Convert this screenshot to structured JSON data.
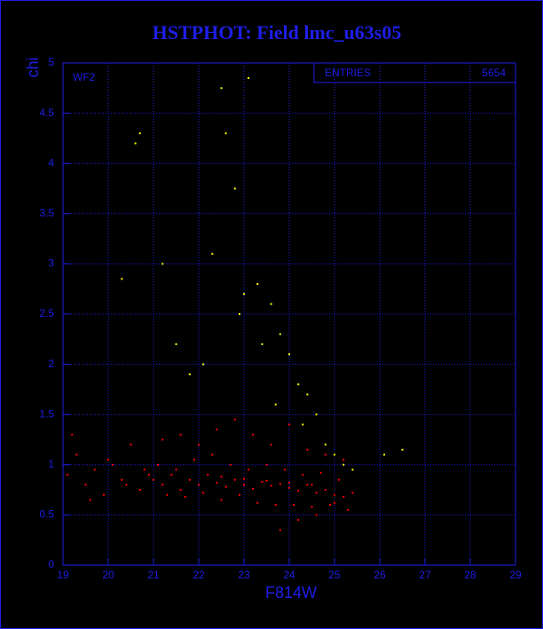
{
  "chart_data": {
    "type": "scatter",
    "title": "HSTPHOT: Field lmc_u63s05",
    "x_label": "F814W",
    "y_label": "chi",
    "panel_label": "WF2",
    "stats_label": "ENTRIES",
    "stats_value": "5654",
    "xlim": [
      19,
      29
    ],
    "ylim": [
      0,
      5
    ],
    "xticks": [
      19,
      20,
      21,
      22,
      23,
      24,
      25,
      26,
      27,
      28,
      29
    ],
    "yticks": [
      0,
      0.5,
      1,
      1.5,
      2,
      2.5,
      3,
      3.5,
      4,
      4.5,
      5
    ],
    "grid": true,
    "series": [
      {
        "color": "#ff0000",
        "x": [
          19.1,
          19.3,
          19.5,
          19.7,
          19.9,
          20.1,
          20.3,
          20.5,
          20.7,
          20.9,
          19.2,
          19.6,
          20.0,
          20.4,
          20.8,
          21.0,
          21.2,
          21.4,
          21.6,
          21.8,
          22.0,
          22.2,
          22.4,
          22.6,
          22.8,
          23.0,
          23.2,
          23.4,
          23.6,
          23.8,
          24.0,
          24.2,
          24.4,
          24.6,
          24.8,
          25.0,
          25.2,
          25.4,
          21.1,
          21.3,
          21.5,
          21.7,
          21.9,
          22.1,
          22.3,
          22.5,
          22.7,
          22.9,
          23.1,
          23.3,
          23.5,
          23.7,
          23.9,
          24.1,
          24.3,
          24.5,
          24.7,
          24.9,
          25.1,
          25.3,
          21.2,
          21.6,
          22.0,
          22.4,
          22.8,
          23.2,
          23.6,
          24.0,
          24.4,
          24.8,
          25.2,
          22.5,
          23.0,
          23.5,
          24.0,
          24.5,
          23.8,
          24.2,
          24.6,
          25.0
        ],
        "values": [
          0.9,
          1.1,
          0.8,
          0.95,
          0.7,
          1.0,
          0.85,
          1.2,
          0.75,
          0.9,
          1.3,
          0.65,
          1.05,
          0.8,
          0.95,
          0.85,
          0.8,
          0.9,
          0.75,
          0.85,
          0.8,
          0.9,
          0.82,
          0.78,
          0.85,
          0.8,
          0.76,
          0.83,
          0.79,
          0.81,
          0.77,
          0.74,
          0.8,
          0.72,
          0.75,
          0.7,
          0.68,
          0.72,
          1.0,
          0.7,
          0.95,
          0.68,
          1.05,
          0.72,
          1.1,
          0.65,
          1.0,
          0.7,
          0.95,
          0.62,
          1.0,
          0.6,
          0.95,
          0.6,
          0.9,
          0.58,
          0.92,
          0.6,
          0.85,
          0.55,
          1.25,
          1.3,
          1.2,
          1.35,
          1.45,
          1.3,
          1.2,
          1.4,
          1.15,
          1.1,
          1.05,
          0.88,
          0.86,
          0.84,
          0.82,
          0.8,
          0.35,
          0.45,
          0.5,
          0.62
        ]
      },
      {
        "color": "#ffff00",
        "x": [
          20.6,
          20.7,
          20.3,
          21.2,
          21.5,
          22.1,
          22.5,
          22.6,
          22.8,
          22.9,
          23.1,
          23.3,
          23.4,
          23.6,
          23.8,
          24.0,
          24.2,
          24.4,
          24.6,
          24.8,
          25.0,
          25.2,
          25.4,
          26.1,
          26.5,
          21.8,
          22.3,
          23.0,
          23.7,
          24.3
        ],
        "values": [
          4.2,
          4.3,
          2.85,
          3.0,
          2.2,
          2.0,
          4.75,
          4.3,
          3.75,
          2.5,
          4.85,
          2.8,
          2.2,
          2.6,
          2.3,
          2.1,
          1.8,
          1.7,
          1.5,
          1.2,
          1.1,
          1.0,
          0.95,
          1.1,
          1.15,
          1.9,
          3.1,
          2.7,
          1.6,
          1.4
        ]
      }
    ]
  }
}
